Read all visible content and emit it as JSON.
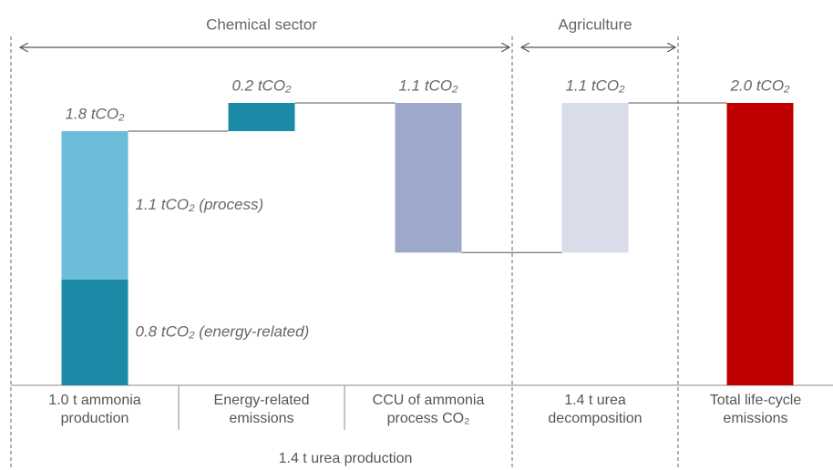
{
  "chart_data": {
    "type": "waterfall",
    "sectors": [
      {
        "label": "Chemical sector",
        "from": 0,
        "to": 2
      },
      {
        "label": "Agriculture",
        "from": 3,
        "to": 3
      }
    ],
    "categories": [
      "1.0 t ammonia production",
      "Energy-related emissions",
      "CCU of ammonia process CO₂",
      "1.4 t urea decomposition",
      "Total life-cycle emissions"
    ],
    "group_labels": [
      {
        "label": "1.4 t urea production",
        "from": 1,
        "to": 2
      }
    ],
    "values": [
      1.8,
      0.2,
      -1.06,
      1.06,
      2.0
    ],
    "value_labels": [
      "1.8 tCO₂",
      "0.2 tCO₂",
      "1.1 tCO₂",
      "1.1 tCO₂",
      "2.0 tCO₂"
    ],
    "measure": [
      "relative",
      "relative",
      "relative",
      "relative",
      "total"
    ],
    "colors": [
      "#1a8aa6",
      "#1a8aa6",
      "#9ea8cb",
      "#d8dde9",
      "#c00000"
    ],
    "segments": [
      {
        "value": 0.75,
        "label": "0.8 tCO₂ (energy-related)",
        "color": "#1a8aa6"
      },
      {
        "value": 1.05,
        "label": "1.1 tCO₂ (process)",
        "color": "#6cbcd9"
      }
    ],
    "ylim": [
      0,
      2.0
    ]
  }
}
